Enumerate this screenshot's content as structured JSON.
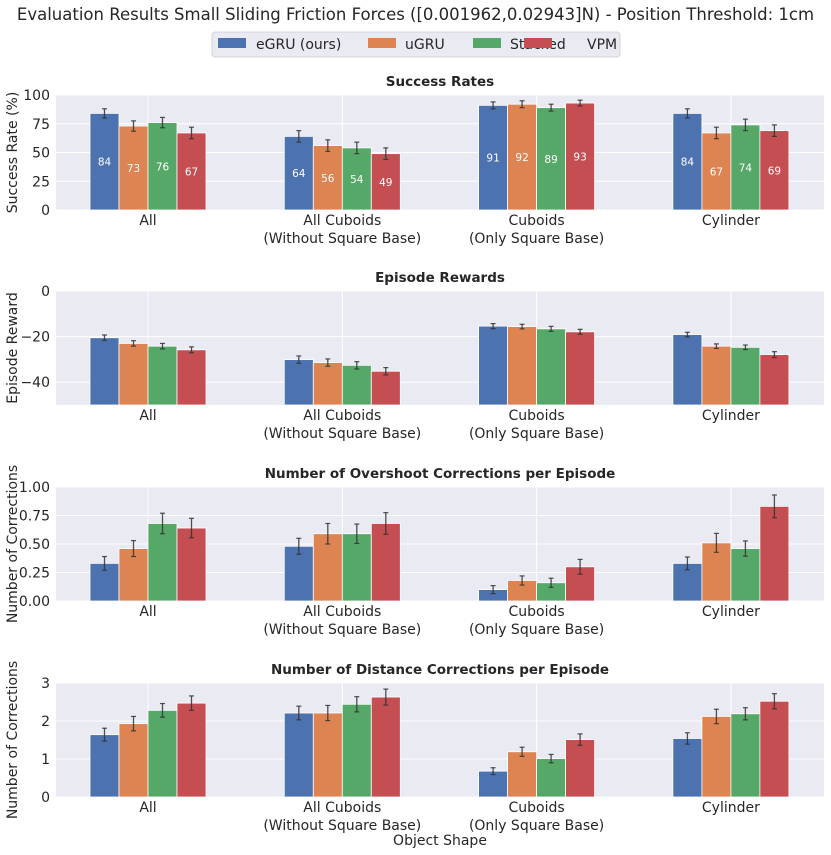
{
  "chart_data": {
    "type": "bar",
    "title": "Evaluation Results Small Sliding Friction Forces ([0.001962,0.02943]N) - Position Threshold: 1cm",
    "xlabel": "Object Shape",
    "legend": {
      "placement": "top-center",
      "entries": [
        {
          "name": "eGRU (ours)",
          "color": "#4c72b0"
        },
        {
          "name": "uGRU",
          "color": "#dd8452"
        },
        {
          "name": "Stacked",
          "color": "#55a868"
        },
        {
          "name": "VPM",
          "color": "#c44e52"
        }
      ]
    },
    "categories": [
      [
        "All"
      ],
      [
        "All Cuboids",
        "(Without Square Base)"
      ],
      [
        "Cuboids",
        "(Only Square Base)"
      ],
      [
        "Cylinder"
      ]
    ],
    "subplots": [
      {
        "title": "Success Rates",
        "ylabel": "Success Rate (%)",
        "ylim": [
          0,
          100
        ],
        "yticks": [
          0,
          25,
          50,
          75,
          100
        ],
        "ytick_labels": [
          "0",
          "25",
          "50",
          "75",
          "100"
        ],
        "show_bar_labels": true,
        "series": [
          {
            "name": "eGRU (ours)",
            "values": [
              84,
              64,
              91,
              84
            ],
            "errors": [
              4,
              5,
              3,
              4
            ]
          },
          {
            "name": "uGRU",
            "values": [
              73,
              56,
              92,
              67
            ],
            "errors": [
              4.5,
              5,
              3,
              5
            ]
          },
          {
            "name": "Stacked",
            "values": [
              76,
              54,
              89,
              74
            ],
            "errors": [
              4.5,
              5,
              3,
              5
            ]
          },
          {
            "name": "VPM",
            "values": [
              67,
              49,
              93,
              69
            ],
            "errors": [
              5,
              5,
              2.5,
              5
            ]
          }
        ]
      },
      {
        "title": "Episode Rewards",
        "ylabel": "Episode Reward",
        "ylim": [
          -50,
          0
        ],
        "yticks": [
          0,
          -20,
          -40
        ],
        "ytick_labels": [
          "0",
          "−20",
          "−40"
        ],
        "show_bar_labels": false,
        "series": [
          {
            "name": "eGRU (ours)",
            "values": [
              -20.5,
              -30.1,
              -15.4,
              -19.1
            ],
            "errors": [
              1.2,
              1.6,
              1.1,
              1.0
            ]
          },
          {
            "name": "uGRU",
            "values": [
              -23.0,
              -31.4,
              -15.6,
              -24.2
            ],
            "errors": [
              1.2,
              1.6,
              1.0,
              1.0
            ]
          },
          {
            "name": "Stacked",
            "values": [
              -24.2,
              -32.6,
              -16.6,
              -24.7
            ],
            "errors": [
              1.2,
              1.6,
              1.1,
              1.0
            ]
          },
          {
            "name": "VPM",
            "values": [
              -25.8,
              -35.2,
              -17.9,
              -27.9
            ],
            "errors": [
              1.3,
              1.6,
              1.1,
              1.3
            ]
          }
        ]
      },
      {
        "title": "Number of Overshoot Corrections per Episode",
        "ylabel": "Number of Corrections",
        "ylim": [
          0,
          1.0
        ],
        "yticks": [
          0,
          0.25,
          0.5,
          0.75,
          1.0
        ],
        "ytick_labels": [
          "0.00",
          "0.25",
          "0.50",
          "0.75",
          "1.00"
        ],
        "show_bar_labels": false,
        "series": [
          {
            "name": "eGRU (ours)",
            "values": [
              0.33,
              0.48,
              0.1,
              0.33
            ],
            "errors": [
              0.06,
              0.07,
              0.035,
              0.056
            ]
          },
          {
            "name": "uGRU",
            "values": [
              0.46,
              0.59,
              0.18,
              0.51
            ],
            "errors": [
              0.07,
              0.09,
              0.04,
              0.083
            ]
          },
          {
            "name": "Stacked",
            "values": [
              0.68,
              0.59,
              0.16,
              0.46
            ],
            "errors": [
              0.09,
              0.085,
              0.04,
              0.067
            ]
          },
          {
            "name": "VPM",
            "values": [
              0.64,
              0.68,
              0.3,
              0.83
            ],
            "errors": [
              0.085,
              0.095,
              0.065,
              0.1
            ]
          }
        ]
      },
      {
        "title": "Number of Distance Corrections per Episode",
        "ylabel": "Number of Corrections",
        "ylim": [
          0,
          3
        ],
        "yticks": [
          0,
          1,
          2,
          3
        ],
        "ytick_labels": [
          "0",
          "1",
          "2",
          "3"
        ],
        "show_bar_labels": false,
        "series": [
          {
            "name": "eGRU (ours)",
            "values": [
              1.64,
              2.21,
              0.68,
              1.54
            ],
            "errors": [
              0.17,
              0.18,
              0.09,
              0.15
            ]
          },
          {
            "name": "uGRU",
            "values": [
              1.93,
              2.21,
              1.19,
              2.12
            ],
            "errors": [
              0.19,
              0.2,
              0.12,
              0.19
            ]
          },
          {
            "name": "Stacked",
            "values": [
              2.28,
              2.44,
              1.01,
              2.19
            ],
            "errors": [
              0.18,
              0.2,
              0.11,
              0.16
            ]
          },
          {
            "name": "VPM",
            "values": [
              2.47,
              2.63,
              1.51,
              2.52
            ],
            "errors": [
              0.19,
              0.21,
              0.15,
              0.2
            ]
          }
        ]
      }
    ],
    "grid": true
  }
}
